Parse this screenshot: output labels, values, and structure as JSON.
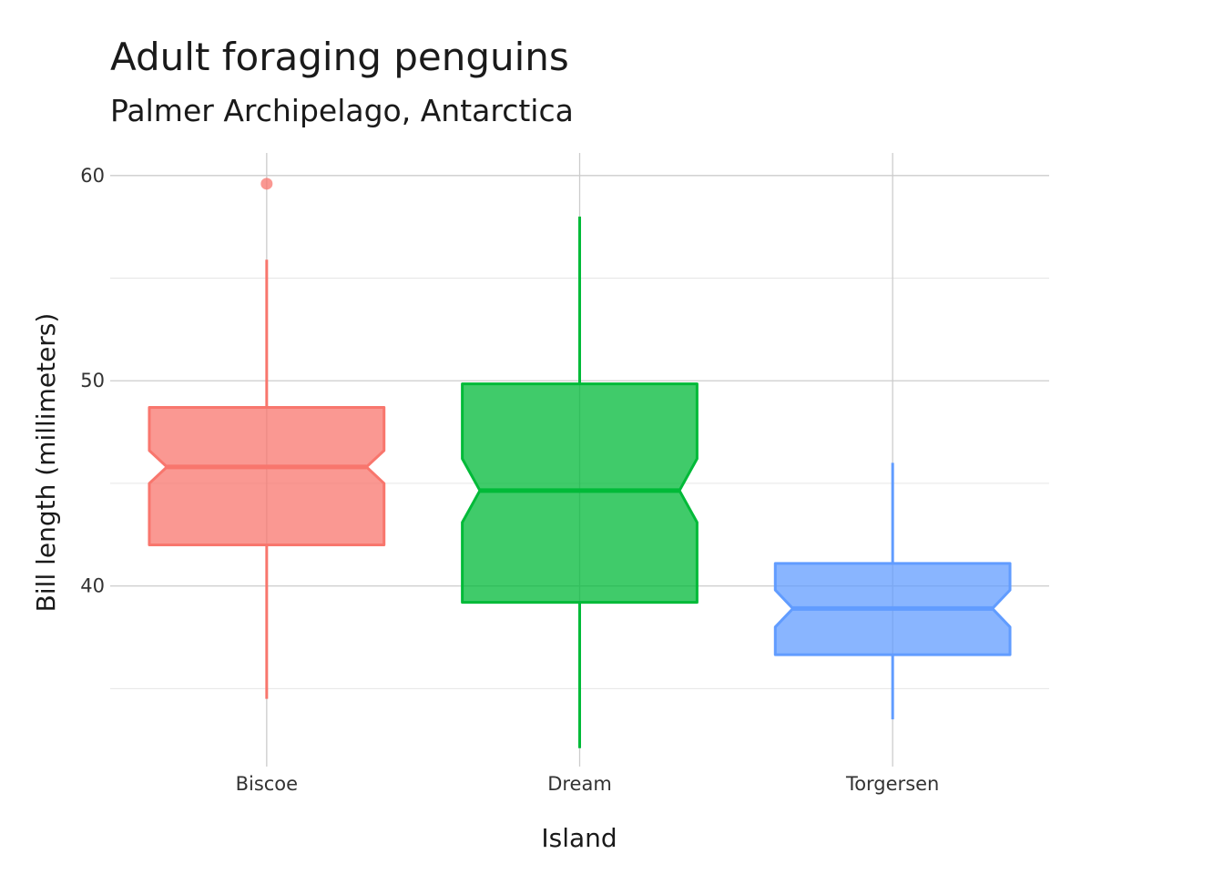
{
  "chart_data": {
    "type": "boxplot",
    "title": "Adult foraging penguins",
    "subtitle": "Palmer Archipelago, Antarctica",
    "xlabel": "Island",
    "ylabel": "Bill length (millimeters)",
    "ylim": [
      31.2,
      61.1
    ],
    "yticks": [
      40,
      50,
      60
    ],
    "notched": true,
    "grid": true,
    "categories": [
      "Biscoe",
      "Dream",
      "Torgersen"
    ],
    "boxes": [
      {
        "category": "Biscoe",
        "color": "#F8766D",
        "whisker_low": 34.5,
        "q1": 42.0,
        "notch_low": 45.0,
        "median": 45.8,
        "notch_high": 46.6,
        "q3": 48.7,
        "whisker_high": 55.9,
        "outliers": [
          59.6
        ]
      },
      {
        "category": "Dream",
        "color": "#00BA38",
        "whisker_low": 32.1,
        "q1": 39.2,
        "notch_low": 43.1,
        "median": 44.65,
        "notch_high": 46.2,
        "q3": 49.85,
        "whisker_high": 58.0,
        "outliers": []
      },
      {
        "category": "Torgersen",
        "color": "#619CFF",
        "whisker_low": 33.5,
        "q1": 36.65,
        "notch_low": 38.0,
        "median": 38.9,
        "notch_high": 39.8,
        "q3": 41.1,
        "whisker_high": 46.0,
        "outliers": []
      }
    ]
  }
}
